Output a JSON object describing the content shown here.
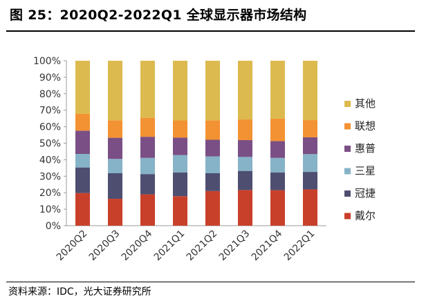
{
  "figure": {
    "title": "图 25：2020Q2-2022Q1 全球显示器市场结构",
    "source": "资料来源：IDC，光大证券研究所"
  },
  "chart_data": {
    "type": "bar",
    "stacked": true,
    "percent": true,
    "categories": [
      "2020Q2",
      "2020Q3",
      "2020Q4",
      "2021Q1",
      "2021Q2",
      "2021Q3",
      "2021Q4",
      "2022Q1"
    ],
    "ylim": [
      0,
      100
    ],
    "y_ticks": [
      "0%",
      "10%",
      "20%",
      "30%",
      "40%",
      "50%",
      "60%",
      "70%",
      "80%",
      "90%",
      "100%"
    ],
    "grid": false,
    "legend_position": "right",
    "series": [
      {
        "name": "戴尔",
        "color": "#c9402a",
        "values": [
          19.8,
          16.3,
          19.0,
          17.9,
          21.0,
          21.6,
          21.5,
          22.0
        ]
      },
      {
        "name": "冠捷",
        "color": "#4e4e70",
        "values": [
          15.5,
          15.5,
          12.3,
          14.4,
          10.8,
          11.6,
          10.8,
          10.6
        ]
      },
      {
        "name": "三星",
        "color": "#86b3c7",
        "values": [
          8.2,
          8.7,
          9.8,
          10.5,
          10.2,
          8.5,
          8.8,
          10.8
        ]
      },
      {
        "name": "惠普",
        "color": "#7a4f85",
        "values": [
          14.1,
          12.8,
          12.8,
          10.6,
          10.1,
          10.2,
          10.2,
          10.2
        ]
      },
      {
        "name": "联想",
        "color": "#f39232",
        "values": [
          10.2,
          10.6,
          11.5,
          10.4,
          11.8,
          12.5,
          13.6,
          10.4
        ]
      },
      {
        "name": "其他",
        "color": "#dcba4f",
        "values": [
          32.2,
          36.1,
          34.6,
          36.2,
          36.1,
          35.6,
          35.1,
          36.0
        ]
      }
    ]
  }
}
